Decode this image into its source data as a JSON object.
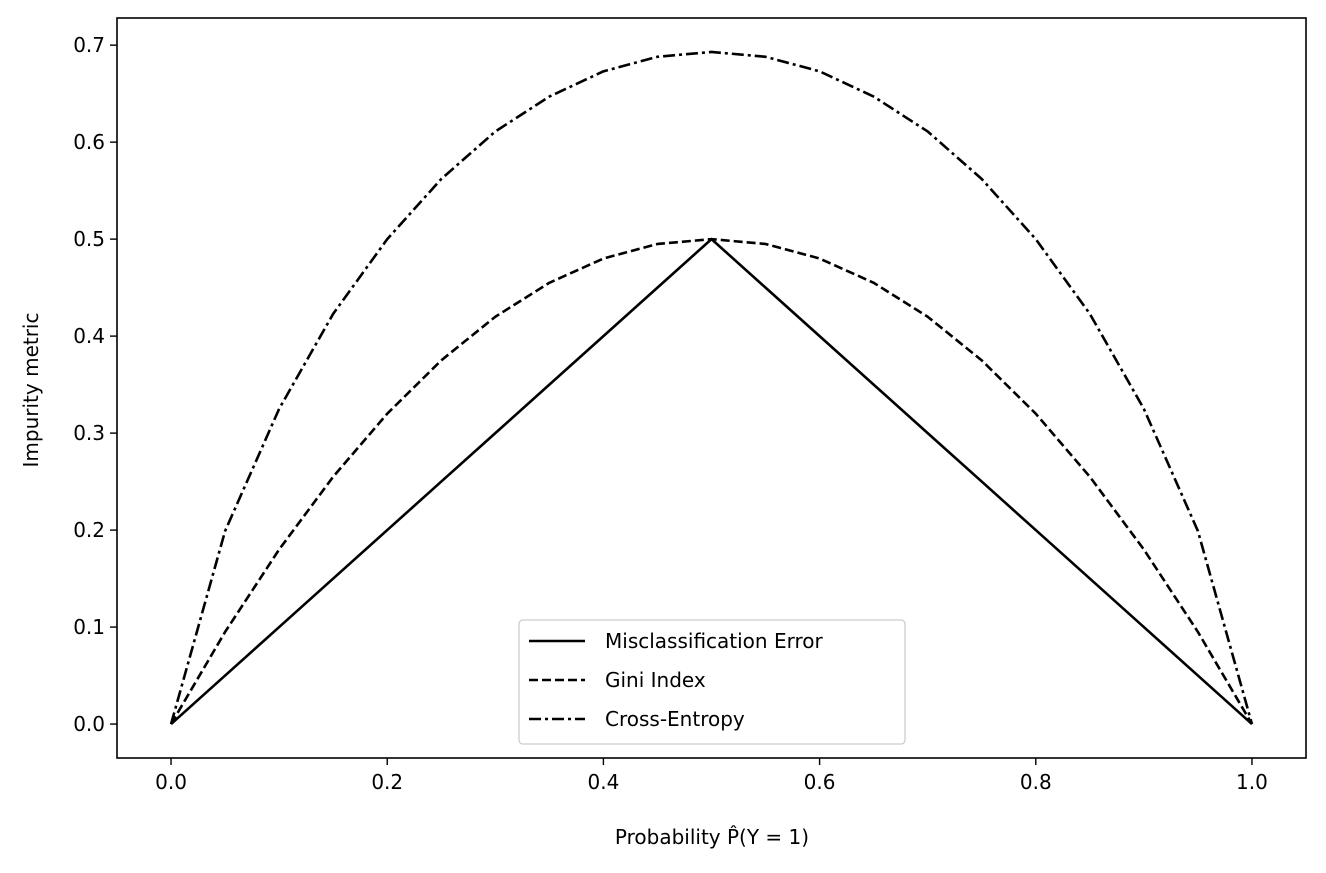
{
  "chart_data": {
    "type": "line",
    "title": "",
    "xlabel": "Probability P̂(Y = 1)",
    "ylabel": "Impurity metric",
    "xlim": [
      -0.05,
      1.05
    ],
    "ylim": [
      -0.035,
      0.728
    ],
    "xticks": [
      0.0,
      0.2,
      0.4,
      0.6,
      0.8,
      1.0
    ],
    "xtick_labels": [
      "0.0",
      "0.2",
      "0.4",
      "0.6",
      "0.8",
      "1.0"
    ],
    "yticks": [
      0.0,
      0.1,
      0.2,
      0.3,
      0.4,
      0.5,
      0.6,
      0.7
    ],
    "ytick_labels": [
      "0.0",
      "0.1",
      "0.2",
      "0.3",
      "0.4",
      "0.5",
      "0.6",
      "0.7"
    ],
    "grid": false,
    "legend_position": "bottom-center",
    "x": [
      0.0,
      0.05,
      0.1,
      0.15,
      0.2,
      0.25,
      0.3,
      0.35,
      0.4,
      0.45,
      0.5,
      0.55,
      0.6,
      0.65,
      0.7,
      0.75,
      0.8,
      0.85,
      0.9,
      0.95,
      1.0
    ],
    "series": [
      {
        "name": "Misclassification Error",
        "linestyle": "solid",
        "color": "#000000",
        "values": [
          0.0,
          0.05,
          0.1,
          0.15,
          0.2,
          0.25,
          0.3,
          0.35,
          0.4,
          0.45,
          0.5,
          0.45,
          0.4,
          0.35,
          0.3,
          0.25,
          0.2,
          0.15,
          0.1,
          0.05,
          0.0
        ]
      },
      {
        "name": "Gini Index",
        "linestyle": "dashed",
        "color": "#000000",
        "values": [
          0.0,
          0.095,
          0.18,
          0.255,
          0.32,
          0.375,
          0.42,
          0.455,
          0.48,
          0.495,
          0.5,
          0.495,
          0.48,
          0.455,
          0.42,
          0.375,
          0.32,
          0.255,
          0.18,
          0.095,
          0.0
        ]
      },
      {
        "name": "Cross-Entropy",
        "linestyle": "dashdot",
        "color": "#000000",
        "values": [
          0.0,
          0.199,
          0.325,
          0.423,
          0.5,
          0.562,
          0.611,
          0.647,
          0.673,
          0.688,
          0.693,
          0.688,
          0.673,
          0.647,
          0.611,
          0.562,
          0.5,
          0.423,
          0.325,
          0.199,
          0.0
        ]
      }
    ]
  }
}
